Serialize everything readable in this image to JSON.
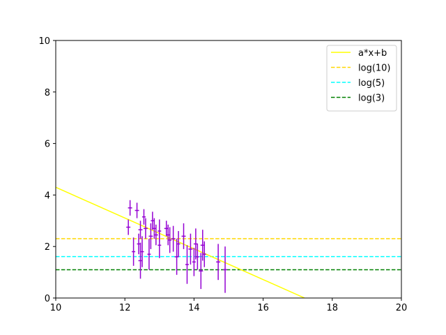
{
  "chart_data": {
    "type": "scatter",
    "xlim": [
      10,
      20
    ],
    "ylim": [
      0,
      10
    ],
    "x_ticks": [
      "10",
      "12",
      "14",
      "16",
      "18",
      "20"
    ],
    "y_ticks": [
      "0",
      "2",
      "4",
      "6",
      "8",
      "10"
    ],
    "grid": false,
    "legend_placement": "top-right",
    "legend": [
      "a*x+b",
      "log(10)",
      "log(5)",
      "log(3)"
    ],
    "fit_line": {
      "name": "a*x+b",
      "color": "#ffff00",
      "points": [
        [
          10,
          4.3
        ],
        [
          17.2,
          0
        ]
      ]
    },
    "hlines": [
      {
        "name": "log(10)",
        "y": 2.302585,
        "color": "#ffd700",
        "dash": "dashed"
      },
      {
        "name": "log(5)",
        "y": 1.609438,
        "color": "#00ffff",
        "dash": "dashed"
      },
      {
        "name": "log(3)",
        "y": 1.098612,
        "color": "#008000",
        "dash": "dashed"
      }
    ],
    "errorbar_color": "#9400d3",
    "points": [
      {
        "x": 12.1,
        "y": 2.75,
        "xerr": 0.06,
        "yerr": 0.3
      },
      {
        "x": 12.15,
        "y": 3.5,
        "xerr": 0.06,
        "yerr": 0.3
      },
      {
        "x": 12.25,
        "y": 1.8,
        "xerr": 0.05,
        "yerr": 0.55
      },
      {
        "x": 12.35,
        "y": 3.4,
        "xerr": 0.06,
        "yerr": 0.3
      },
      {
        "x": 12.4,
        "y": 2.1,
        "xerr": 0.05,
        "yerr": 0.4
      },
      {
        "x": 12.45,
        "y": 1.45,
        "xerr": 0.06,
        "yerr": 0.7
      },
      {
        "x": 12.45,
        "y": 2.65,
        "xerr": 0.06,
        "yerr": 0.35
      },
      {
        "x": 12.5,
        "y": 1.8,
        "xerr": 0.05,
        "yerr": 0.6
      },
      {
        "x": 12.55,
        "y": 3.15,
        "xerr": 0.05,
        "yerr": 0.3
      },
      {
        "x": 12.6,
        "y": 2.7,
        "xerr": 0.06,
        "yerr": 0.4
      },
      {
        "x": 12.7,
        "y": 1.7,
        "xerr": 0.05,
        "yerr": 0.6
      },
      {
        "x": 12.75,
        "y": 2.4,
        "xerr": 0.06,
        "yerr": 0.5
      },
      {
        "x": 12.8,
        "y": 3.0,
        "xerr": 0.05,
        "yerr": 0.35
      },
      {
        "x": 12.85,
        "y": 2.7,
        "xerr": 0.06,
        "yerr": 0.4
      },
      {
        "x": 12.9,
        "y": 2.45,
        "xerr": 0.06,
        "yerr": 0.4
      },
      {
        "x": 13.0,
        "y": 2.05,
        "xerr": 0.05,
        "yerr": 0.5
      },
      {
        "x": 13.0,
        "y": 2.6,
        "xerr": 0.05,
        "yerr": 0.45
      },
      {
        "x": 13.2,
        "y": 2.7,
        "xerr": 0.06,
        "yerr": 0.3
      },
      {
        "x": 13.25,
        "y": 2.45,
        "xerr": 0.06,
        "yerr": 0.4
      },
      {
        "x": 13.3,
        "y": 2.25,
        "xerr": 0.05,
        "yerr": 0.5
      },
      {
        "x": 13.4,
        "y": 2.3,
        "xerr": 0.06,
        "yerr": 0.5
      },
      {
        "x": 13.5,
        "y": 1.6,
        "xerr": 0.06,
        "yerr": 0.7
      },
      {
        "x": 13.55,
        "y": 2.1,
        "xerr": 0.05,
        "yerr": 0.5
      },
      {
        "x": 13.7,
        "y": 2.4,
        "xerr": 0.06,
        "yerr": 0.5
      },
      {
        "x": 13.8,
        "y": 1.3,
        "xerr": 0.05,
        "yerr": 0.75
      },
      {
        "x": 13.9,
        "y": 1.9,
        "xerr": 0.06,
        "yerr": 0.6
      },
      {
        "x": 14.0,
        "y": 1.4,
        "xerr": 0.05,
        "yerr": 0.55
      },
      {
        "x": 14.05,
        "y": 2.1,
        "xerr": 0.06,
        "yerr": 0.6
      },
      {
        "x": 14.1,
        "y": 1.6,
        "xerr": 0.05,
        "yerr": 0.5
      },
      {
        "x": 14.2,
        "y": 1.05,
        "xerr": 0.06,
        "yerr": 0.7
      },
      {
        "x": 14.25,
        "y": 2.05,
        "xerr": 0.06,
        "yerr": 0.6
      },
      {
        "x": 14.3,
        "y": 1.7,
        "xerr": 0.05,
        "yerr": 0.5
      },
      {
        "x": 14.7,
        "y": 1.4,
        "xerr": 0.06,
        "yerr": 0.7
      },
      {
        "x": 14.9,
        "y": 1.1,
        "xerr": 0.06,
        "yerr": 0.9
      }
    ]
  }
}
